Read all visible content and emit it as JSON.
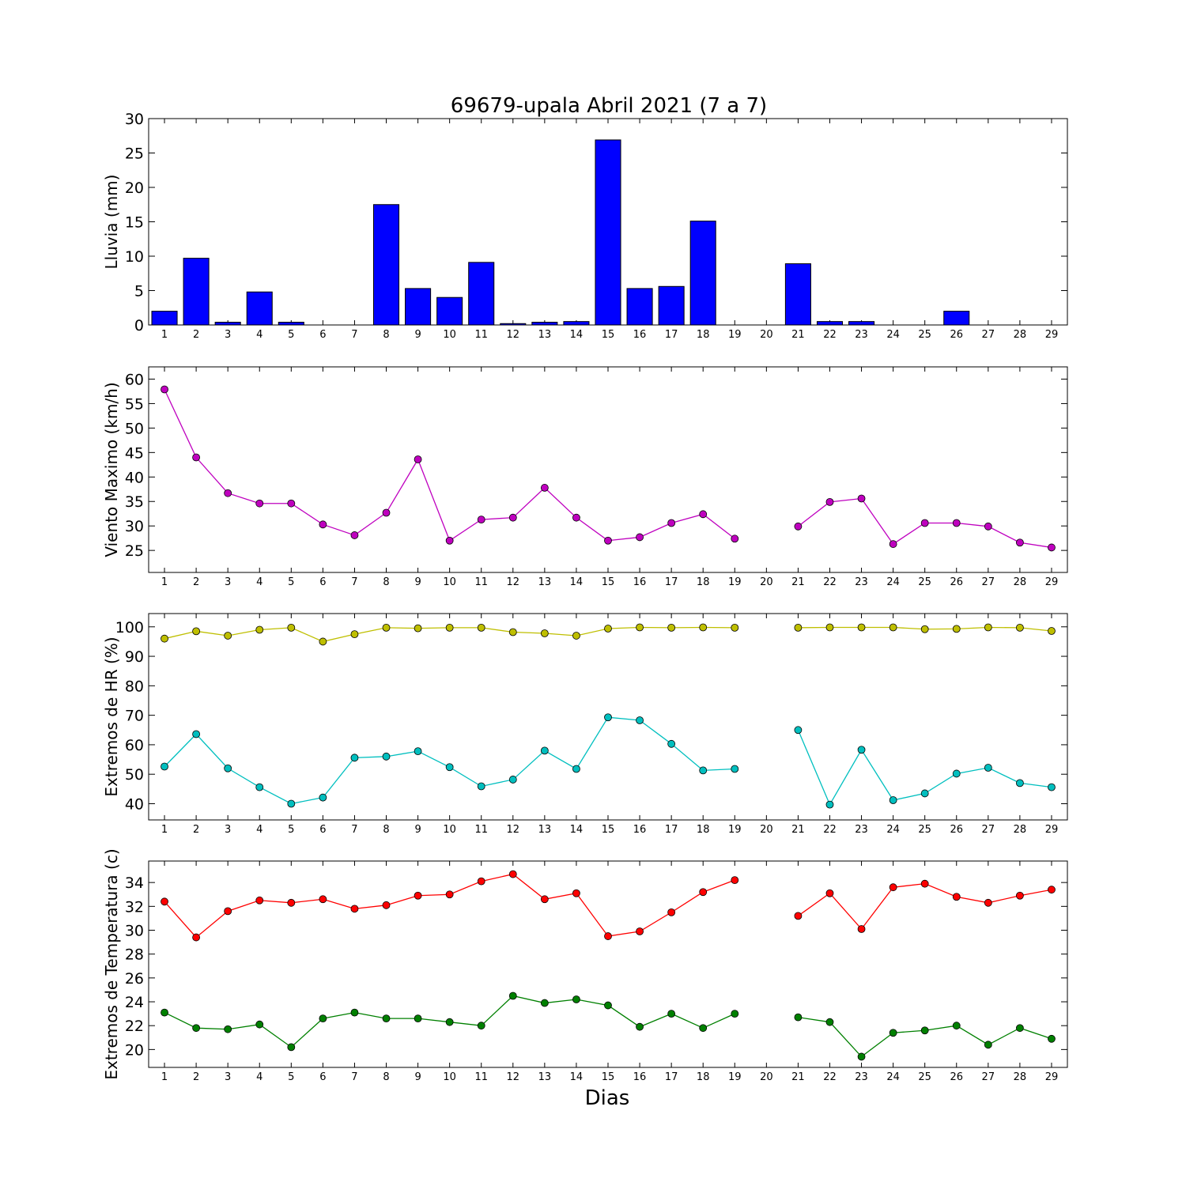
{
  "figure": {
    "title": "69679-upala Abril 2021  (7 a 7)",
    "xlabel": "Dias"
  },
  "chart_data": [
    {
      "type": "bar",
      "ylabel": "Lluvia (mm)",
      "x": [
        1,
        2,
        3,
        4,
        5,
        6,
        7,
        8,
        9,
        10,
        11,
        12,
        13,
        14,
        15,
        16,
        17,
        18,
        19,
        20,
        21,
        22,
        23,
        24,
        25,
        26,
        27,
        28,
        29
      ],
      "ylim": [
        0,
        30
      ],
      "yticks": [
        0,
        5,
        10,
        15,
        20,
        25,
        30
      ],
      "color": "#0000ff",
      "values": [
        2.0,
        9.7,
        0.4,
        4.8,
        0.4,
        0.0,
        0.0,
        17.5,
        5.3,
        4.0,
        9.1,
        0.2,
        0.4,
        0.5,
        26.9,
        5.3,
        5.6,
        15.1,
        0.0,
        null,
        8.9,
        0.5,
        0.5,
        0.0,
        0.0,
        2.0,
        0.0,
        0.0,
        0.0
      ]
    },
    {
      "type": "line",
      "ylabel": "Viento Maximo (km/h)",
      "x": [
        1,
        2,
        3,
        4,
        5,
        6,
        7,
        8,
        9,
        10,
        11,
        12,
        13,
        14,
        15,
        16,
        17,
        18,
        19,
        20,
        21,
        22,
        23,
        24,
        25,
        26,
        27,
        28,
        29
      ],
      "ylim": [
        20.5,
        62.5
      ],
      "yticks": [
        25,
        30,
        35,
        40,
        45,
        50,
        55,
        60
      ],
      "series": [
        {
          "color": "#bf00bf",
          "values": [
            57.9,
            44.0,
            36.7,
            34.6,
            34.6,
            30.3,
            28.1,
            32.7,
            43.6,
            27.0,
            31.3,
            31.7,
            37.8,
            31.7,
            27.0,
            27.7,
            30.6,
            32.4,
            27.4,
            null,
            29.9,
            34.9,
            35.6,
            26.3,
            30.6,
            30.6,
            29.9,
            26.6,
            25.6
          ]
        }
      ]
    },
    {
      "type": "line",
      "ylabel": "Extremos de HR (%)",
      "x": [
        1,
        2,
        3,
        4,
        5,
        6,
        7,
        8,
        9,
        10,
        11,
        12,
        13,
        14,
        15,
        16,
        17,
        18,
        19,
        20,
        21,
        22,
        23,
        24,
        25,
        26,
        27,
        28,
        29
      ],
      "ylim": [
        34.5,
        104.5
      ],
      "yticks": [
        40,
        50,
        60,
        70,
        80,
        90,
        100
      ],
      "series": [
        {
          "color": "#bfbf00",
          "values": [
            96,
            98.5,
            97,
            99,
            99.7,
            95,
            97.5,
            99.7,
            99.5,
            99.7,
            99.7,
            98.2,
            97.8,
            97,
            99.4,
            99.8,
            99.7,
            99.8,
            99.7,
            null,
            99.7,
            99.8,
            99.8,
            99.8,
            99.2,
            99.3,
            99.8,
            99.7,
            98.6
          ]
        },
        {
          "color": "#00bfbf",
          "values": [
            52.6,
            63.6,
            52,
            45.6,
            40,
            42.1,
            55.6,
            56,
            57.8,
            52.4,
            45.9,
            48.2,
            58,
            51.8,
            69.3,
            68.3,
            60.3,
            51.3,
            51.8,
            null,
            65,
            39.7,
            58.3,
            41.2,
            43.5,
            50.2,
            52.2,
            47,
            45.6
          ]
        }
      ]
    },
    {
      "type": "line",
      "ylabel": "Extremos de Temperatura (c)",
      "x": [
        1,
        2,
        3,
        4,
        5,
        6,
        7,
        8,
        9,
        10,
        11,
        12,
        13,
        14,
        15,
        16,
        17,
        18,
        19,
        20,
        21,
        22,
        23,
        24,
        25,
        26,
        27,
        28,
        29
      ],
      "ylim": [
        18.5,
        35.8
      ],
      "yticks": [
        20,
        22,
        24,
        26,
        28,
        30,
        32,
        34
      ],
      "series": [
        {
          "color": "#ff0000",
          "values": [
            32.4,
            29.4,
            31.6,
            32.5,
            32.3,
            32.6,
            31.8,
            32.1,
            32.9,
            33.0,
            34.1,
            34.7,
            32.6,
            33.1,
            29.5,
            29.9,
            31.5,
            33.2,
            34.2,
            null,
            31.2,
            33.1,
            30.1,
            33.6,
            33.9,
            32.8,
            32.3,
            32.9,
            33.4
          ]
        },
        {
          "color": "#008000",
          "values": [
            23.1,
            21.8,
            21.7,
            22.1,
            20.2,
            22.6,
            23.1,
            22.6,
            22.6,
            22.3,
            22.0,
            24.5,
            23.9,
            24.2,
            23.7,
            21.9,
            23.0,
            21.8,
            23.0,
            null,
            22.7,
            22.3,
            19.4,
            21.4,
            21.6,
            22.0,
            20.4,
            21.8,
            20.9
          ]
        }
      ]
    }
  ]
}
